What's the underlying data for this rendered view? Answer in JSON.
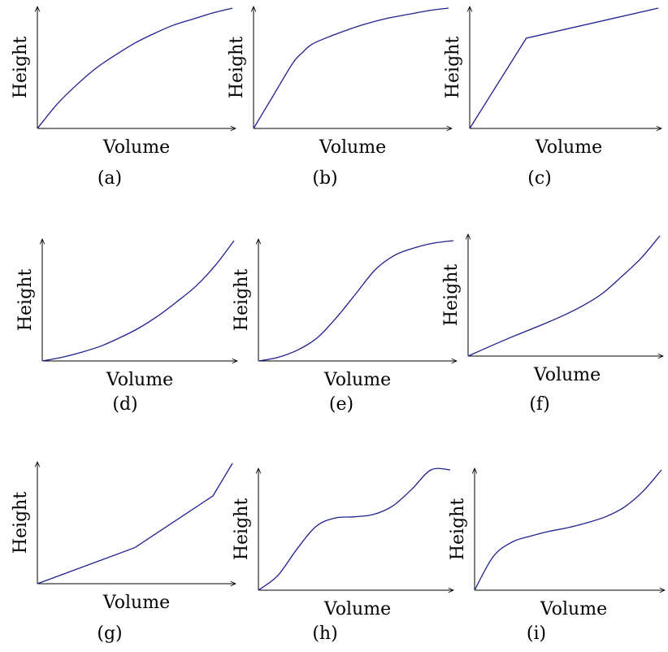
{
  "chart_data": [
    {
      "type": "line",
      "caption": "(a)",
      "xlabel": "Volume",
      "ylabel": "Height",
      "series": [
        {
          "x": [
            0,
            0.1,
            0.2,
            0.3,
            0.4,
            0.5,
            0.6,
            0.7,
            0.8,
            0.9,
            1
          ],
          "y": [
            0,
            0.2,
            0.36,
            0.5,
            0.61,
            0.71,
            0.79,
            0.86,
            0.91,
            0.96,
            1
          ]
        }
      ]
    },
    {
      "type": "line",
      "caption": "(b)",
      "xlabel": "Volume",
      "ylabel": "Height",
      "series": [
        {
          "x": [
            0,
            0.1,
            0.2,
            0.25,
            0.3,
            0.4,
            0.5,
            0.6,
            0.7,
            0.8,
            0.9,
            1
          ],
          "y": [
            0,
            0.27,
            0.54,
            0.63,
            0.7,
            0.77,
            0.83,
            0.88,
            0.92,
            0.95,
            0.98,
            1
          ]
        }
      ]
    },
    {
      "type": "line",
      "caption": "(c)",
      "xlabel": "Volume",
      "ylabel": "Height",
      "series": [
        {
          "x": [
            0,
            0.3,
            1
          ],
          "y": [
            0,
            0.75,
            1
          ]
        }
      ]
    },
    {
      "type": "line",
      "caption": "(d)",
      "xlabel": "Volume",
      "ylabel": "Height",
      "series": [
        {
          "x": [
            0,
            0.1,
            0.2,
            0.3,
            0.4,
            0.5,
            0.6,
            0.7,
            0.8,
            0.9,
            1
          ],
          "y": [
            0,
            0.03,
            0.07,
            0.12,
            0.19,
            0.27,
            0.37,
            0.49,
            0.62,
            0.79,
            1
          ]
        }
      ]
    },
    {
      "type": "line",
      "caption": "(e)",
      "xlabel": "Volume",
      "ylabel": "Height",
      "series": [
        {
          "x": [
            0,
            0.1,
            0.2,
            0.3,
            0.4,
            0.5,
            0.6,
            0.7,
            0.8,
            0.9,
            1
          ],
          "y": [
            0,
            0.03,
            0.09,
            0.19,
            0.36,
            0.56,
            0.76,
            0.88,
            0.94,
            0.98,
            1
          ]
        }
      ]
    },
    {
      "type": "line",
      "caption": "(f)",
      "xlabel": "Volume",
      "ylabel": "Height",
      "series": [
        {
          "x": [
            0,
            0.2,
            0.4,
            0.5,
            0.6,
            0.7,
            0.8,
            0.9,
            1
          ],
          "y": [
            0,
            0.14,
            0.27,
            0.34,
            0.42,
            0.52,
            0.66,
            0.81,
            1
          ]
        }
      ]
    },
    {
      "type": "line",
      "caption": "(g)",
      "xlabel": "Volume",
      "ylabel": "Height",
      "series": [
        {
          "x": [
            0,
            0.5,
            0.9,
            1
          ],
          "y": [
            0,
            0.3,
            0.73,
            1
          ]
        }
      ]
    },
    {
      "type": "line",
      "caption": "(h)",
      "xlabel": "Volume",
      "ylabel": "Height",
      "series": [
        {
          "x": [
            0,
            0.1,
            0.2,
            0.3,
            0.4,
            0.5,
            0.6,
            0.7,
            0.8,
            0.9,
            1
          ],
          "y": [
            0,
            0.12,
            0.34,
            0.53,
            0.6,
            0.61,
            0.63,
            0.7,
            0.84,
            1.0,
            1.0
          ]
        }
      ]
    },
    {
      "type": "line",
      "caption": "(i)",
      "xlabel": "Volume",
      "ylabel": "Height",
      "series": [
        {
          "x": [
            0,
            0.1,
            0.2,
            0.3,
            0.4,
            0.5,
            0.6,
            0.7,
            0.8,
            0.9,
            1
          ],
          "y": [
            0,
            0.28,
            0.4,
            0.45,
            0.49,
            0.52,
            0.56,
            0.61,
            0.69,
            0.82,
            1
          ]
        }
      ]
    }
  ]
}
